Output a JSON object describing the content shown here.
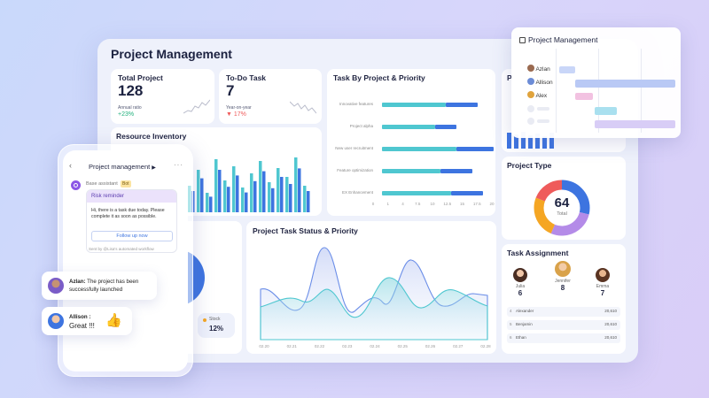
{
  "main": {
    "title": "Project Management",
    "total_project": {
      "title": "Total Project",
      "value": "128",
      "caption": "Annual ratio",
      "change": "+23%"
    },
    "todo": {
      "title": "To-Do Task",
      "value": "7",
      "caption": "Year-on-year",
      "change": "17%"
    },
    "resource": {
      "title": "Resource Inventory"
    },
    "stock": {
      "label": "Stock",
      "value": "12%"
    },
    "status": {
      "title": "Project Task Status & Priority"
    },
    "project_type": {
      "title": "Project Type",
      "value": "64",
      "caption": "Total"
    },
    "assignment": {
      "title": "Task Assignment",
      "people": [
        {
          "name": "Julia",
          "count": "6"
        },
        {
          "name": "Jennifer",
          "count": "8"
        },
        {
          "name": "Emma",
          "count": "7"
        }
      ],
      "rows": [
        {
          "name": "Alexander",
          "value": "20,610"
        },
        {
          "name": "Benjamin",
          "value": "20,610"
        },
        {
          "name": "Ethan",
          "value": "20,610"
        }
      ]
    }
  },
  "chart_data": [
    {
      "type": "bar",
      "title": "Task By Project & Priority",
      "orientation": "horizontal",
      "categories": [
        "Innovative features",
        "Project alpha",
        "New user recruitment",
        "Feature optimization",
        "EX Enhancement"
      ],
      "series": [
        {
          "values": [
            60,
            50,
            70,
            55,
            65
          ]
        },
        {
          "values": [
            30,
            20,
            35,
            30,
            30
          ]
        }
      ],
      "xticks": [
        "0",
        "1",
        "4",
        "7.5",
        "10",
        "12.5",
        "15",
        "17.5",
        "20"
      ]
    },
    {
      "type": "area",
      "title": "Project Task Status & Priority",
      "x": [
        "02.20",
        "02.21",
        "02.22",
        "02.23",
        "02.24",
        "02.25",
        "02.26",
        "02.27",
        "02.28"
      ]
    }
  ],
  "colors": {
    "teal": "#4fc7d0",
    "blue": "#3d74e0",
    "purple": "#b48be8",
    "orange": "#f5a623",
    "red": "#ef5b5b",
    "green": "#22b07d",
    "lilac": "#cfc3f7"
  },
  "gantt": {
    "title": "Project Management",
    "people": [
      "Azlan",
      "Allison",
      "Alex"
    ]
  },
  "phone": {
    "title": "Project management",
    "assistant_label": "Base assistant",
    "bot_badge": "Bot",
    "reminder_title": "Risk reminder",
    "reminder_text": "Hi, there is a task due today. Please complete it as soon as possible.",
    "follow_button": "Follow up now",
    "sent_by": "Sent by @Lisa's automated workflow"
  },
  "chat": [
    {
      "name": "Azlan:",
      "text": "The project has been successfully launched"
    },
    {
      "name": "Allison :",
      "text": "Great !!!"
    }
  ]
}
